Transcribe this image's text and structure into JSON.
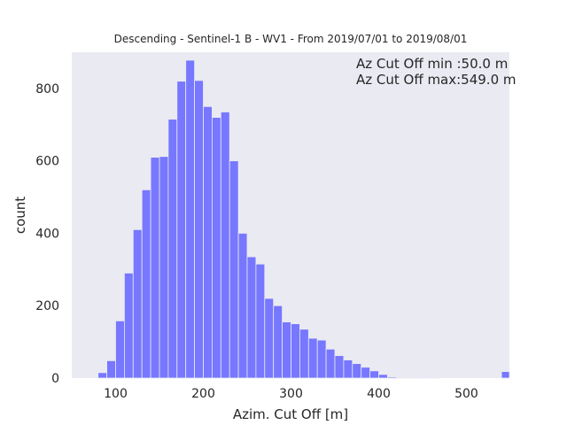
{
  "chart_data": {
    "type": "bar",
    "title": "Descending - Sentinel-1 B - WV1 - From 2019/07/01 to 2019/08/01",
    "xlabel": "Azim. Cut Off [m]",
    "ylabel": "count",
    "xlim": [
      50,
      549
    ],
    "ylim": [
      0,
      900
    ],
    "xticks": [
      100,
      200,
      300,
      400,
      500
    ],
    "yticks": [
      0,
      200,
      400,
      600,
      800
    ],
    "grid": false,
    "bar_color": "#7777ff",
    "plot_background": "#eaeaf2",
    "bin_edges": [
      80,
      90,
      100,
      110,
      120,
      130,
      140,
      150,
      160,
      170,
      180,
      190,
      200,
      210,
      220,
      230,
      240,
      250,
      260,
      270,
      280,
      290,
      300,
      310,
      320,
      330,
      340,
      350,
      360,
      370,
      380,
      390,
      400,
      410,
      420,
      430,
      440,
      450,
      460,
      470,
      480,
      490,
      500,
      510,
      520,
      530,
      540,
      550
    ],
    "values": [
      15,
      48,
      158,
      290,
      410,
      520,
      610,
      612,
      715,
      820,
      878,
      822,
      750,
      720,
      735,
      600,
      400,
      335,
      315,
      220,
      200,
      155,
      150,
      135,
      110,
      105,
      80,
      62,
      50,
      40,
      30,
      20,
      10,
      3,
      2,
      1,
      1,
      2,
      1,
      0,
      0,
      0,
      0,
      0,
      0,
      0,
      18
    ],
    "annotations": [
      "Az Cut Off min :50.0 m",
      "Az Cut Off max:549.0 m"
    ]
  }
}
